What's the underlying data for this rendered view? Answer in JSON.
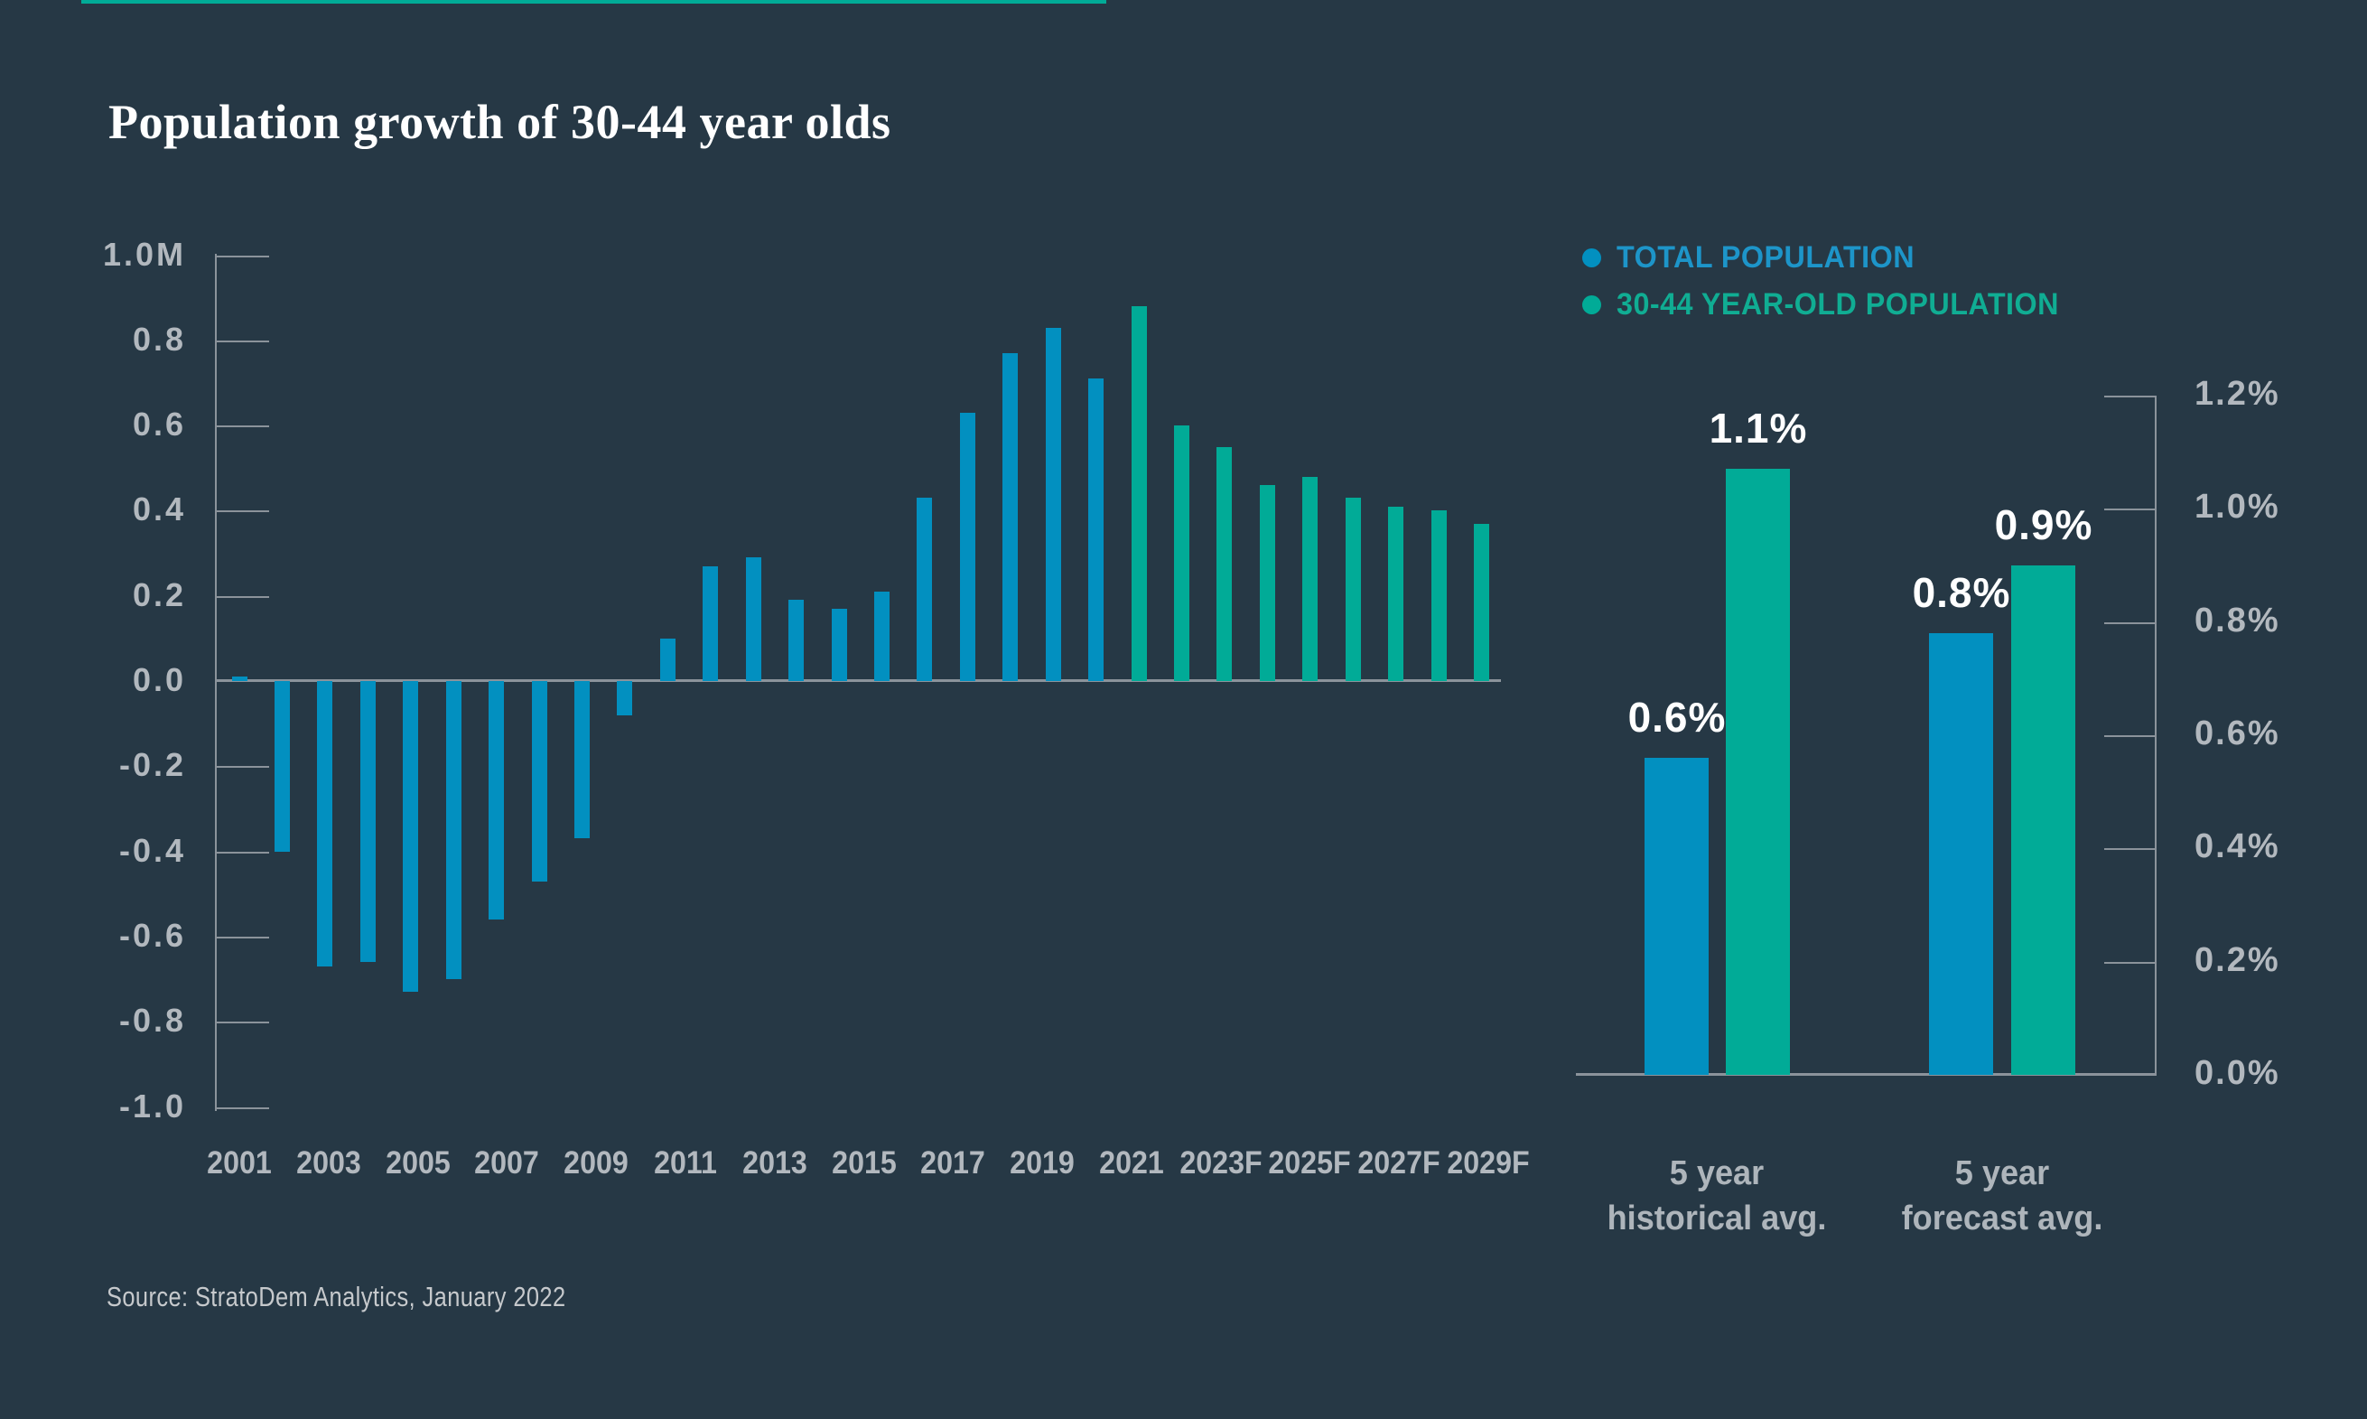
{
  "page": {
    "title": "Population growth of 30-44 year olds",
    "source": "Source: StratoDem Analytics, January 2022"
  },
  "colors": {
    "background": "#263845",
    "accent_bar": "#01ab97",
    "blue": "#0290c0",
    "teal": "#01ab97",
    "legend_blue_text": "#1d95c9",
    "legend_teal_text": "#10ad93",
    "axis": "#8b939b",
    "tick_label_gray": "#b2b8be",
    "value_label_white": "#ffffff",
    "source_gray": "#c6c9cc"
  },
  "legend": {
    "items": [
      {
        "label": "TOTAL POPULATION",
        "dot_color": "#0290c0",
        "text_color": "#1d95c9"
      },
      {
        "label": "30-44 YEAR-OLD POPULATION",
        "dot_color": "#01ab97",
        "text_color": "#10ad93"
      }
    ]
  },
  "chart_data": [
    {
      "id": "population-growth-by-year",
      "type": "bar",
      "title": "Population growth of 30-44 year olds",
      "x": [
        2001,
        2002,
        2003,
        2004,
        2005,
        2006,
        2007,
        2008,
        2009,
        2010,
        2011,
        2012,
        2013,
        2014,
        2015,
        2016,
        2017,
        2018,
        2019,
        2020,
        2021,
        2022,
        2023,
        2024,
        2025,
        2026,
        2027,
        2028,
        2029,
        2030
      ],
      "values": [
        0.01,
        -0.4,
        -0.67,
        -0.66,
        -0.73,
        -0.7,
        -0.56,
        -0.47,
        -0.37,
        -0.08,
        0.1,
        0.27,
        0.29,
        0.19,
        0.17,
        0.21,
        0.43,
        0.63,
        0.77,
        0.83,
        0.71,
        0.88,
        0.6,
        0.55,
        0.46,
        0.48,
        0.43,
        0.41,
        0.4,
        0.37
      ],
      "units": "millions",
      "actual_color": "#0290c0",
      "forecast_color": "#01ab97",
      "forecast_start_year": 2022,
      "ylim": [
        -1.0,
        1.0
      ],
      "y_tick_labels": [
        "1.0M",
        "0.8",
        "0.6",
        "0.4",
        "0.2",
        "0.0",
        "-0.2",
        "-0.4",
        "-0.6",
        "-0.8",
        "-1.0"
      ],
      "x_tick_labels": [
        "2001",
        "2003",
        "2005",
        "2007",
        "2009",
        "2011",
        "2013",
        "2015",
        "2017",
        "2019",
        "2021",
        "2023F",
        "2025F",
        "2027F",
        "2029F"
      ],
      "grid": "short ticks on left axis, zero baseline only",
      "legend_position": "top-right"
    },
    {
      "id": "avg-growth-comparison",
      "type": "bar",
      "categories": [
        "5 year historical avg.",
        "5 year forecast avg."
      ],
      "series": [
        {
          "name": "TOTAL POPULATION",
          "color": "#0290c0",
          "values": [
            0.6,
            0.8
          ],
          "labels": [
            "0.6%",
            "0.8%"
          ],
          "drawn_values": [
            0.56,
            0.78
          ]
        },
        {
          "name": "30-44 YEAR-OLD POPULATION",
          "color": "#01ab97",
          "values": [
            1.1,
            0.9
          ],
          "labels": [
            "1.1%",
            "0.9%"
          ],
          "drawn_values": [
            1.07,
            0.9
          ]
        }
      ],
      "ylim": [
        0,
        1.2
      ],
      "y_tick_labels": [
        "1.2%",
        "1.0%",
        "0.8%",
        "0.6%",
        "0.4%",
        "0.2%",
        "0.0%"
      ],
      "axis_side": "right",
      "grid": "short ticks on right axis, zero baseline only"
    }
  ],
  "right_chart_categories": [
    {
      "line1": "5 year",
      "line2": "historical avg."
    },
    {
      "line1": "5 year",
      "line2": "forecast avg."
    }
  ]
}
